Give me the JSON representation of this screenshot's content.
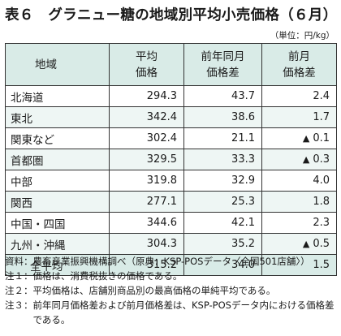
{
  "title": "表６　グラニュー糖の地域別平均小売価格（６月）",
  "unit": "（単位：円/kg）",
  "table": {
    "headers": [
      "地域",
      "平均\n価格",
      "前年同月\n価格差",
      "前月\n価格差"
    ],
    "rows": [
      {
        "region": "北海道",
        "avg": "294.3",
        "yoy": "43.7",
        "mom_mark": "",
        "mom": "2.4"
      },
      {
        "region": "東北",
        "avg": "342.4",
        "yoy": "38.6",
        "mom_mark": "",
        "mom": "1.7"
      },
      {
        "region": "関東など",
        "avg": "302.4",
        "yoy": "21.1",
        "mom_mark": "▲",
        "mom": "0.1"
      },
      {
        "region": "首都圏",
        "avg": "329.5",
        "yoy": "33.3",
        "mom_mark": "▲",
        "mom": "0.3"
      },
      {
        "region": "中部",
        "avg": "319.8",
        "yoy": "32.9",
        "mom_mark": "",
        "mom": "4.0"
      },
      {
        "region": "関西",
        "avg": "277.1",
        "yoy": "25.3",
        "mom_mark": "",
        "mom": "1.8"
      },
      {
        "region": "中国・四国",
        "avg": "344.6",
        "yoy": "42.1",
        "mom_mark": "",
        "mom": "2.3"
      },
      {
        "region": "九州・沖縄",
        "avg": "304.3",
        "yoy": "35.2",
        "mom_mark": "▲",
        "mom": "0.5"
      }
    ],
    "total": {
      "region": "全平均",
      "avg": "315.2",
      "yoy": "34.0",
      "mom_mark": "",
      "mom": "1.5"
    }
  },
  "notes": [
    {
      "label": "資料：",
      "text": "農畜産業振興機構調べ（原典：KSP-POSデータ〈全国501店舗〉）"
    },
    {
      "label": "注１：",
      "text": "価格は、消費税抜きの価格である。"
    },
    {
      "label": "注２：",
      "text": "平均価格は、店舗別商品別の最高価格の単純平均である。"
    },
    {
      "label": "注３：",
      "text": "前年同月価格差および前月価格差は、KSP-POSデータ内における価格差である。"
    }
  ]
}
